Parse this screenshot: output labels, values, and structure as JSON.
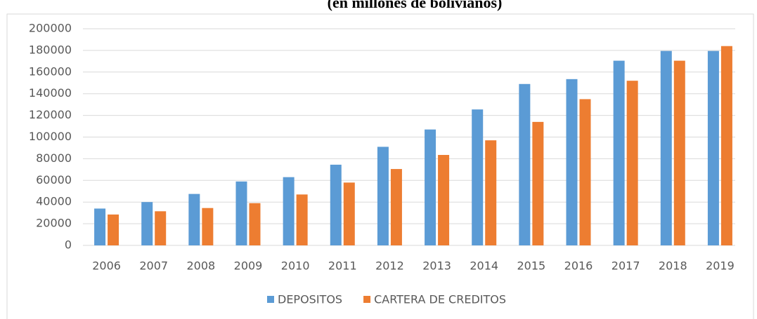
{
  "chart_data": {
    "type": "bar",
    "title": "(en millones de bolivianos)",
    "categories": [
      "2006",
      "2007",
      "2008",
      "2009",
      "2010",
      "2011",
      "2012",
      "2013",
      "2014",
      "2015",
      "2016",
      "2017",
      "2018",
      "2019"
    ],
    "series": [
      {
        "name": "DEPOSITOS",
        "color": "#5b9bd5",
        "values": [
          34000,
          40000,
          47500,
          59000,
          63000,
          74500,
          91000,
          107000,
          125500,
          149000,
          153500,
          170500,
          179500,
          179500
        ]
      },
      {
        "name": "CARTERA DE CREDITOS",
        "color": "#ed7d31",
        "values": [
          28500,
          31500,
          34500,
          39000,
          47000,
          58000,
          70500,
          83500,
          97000,
          114000,
          135000,
          152000,
          170500,
          184000
        ]
      }
    ],
    "ylim": [
      0,
      200000
    ],
    "yticks": [
      0,
      20000,
      40000,
      60000,
      80000,
      100000,
      120000,
      140000,
      160000,
      180000,
      200000
    ],
    "grid": true,
    "legend": "bottom"
  }
}
